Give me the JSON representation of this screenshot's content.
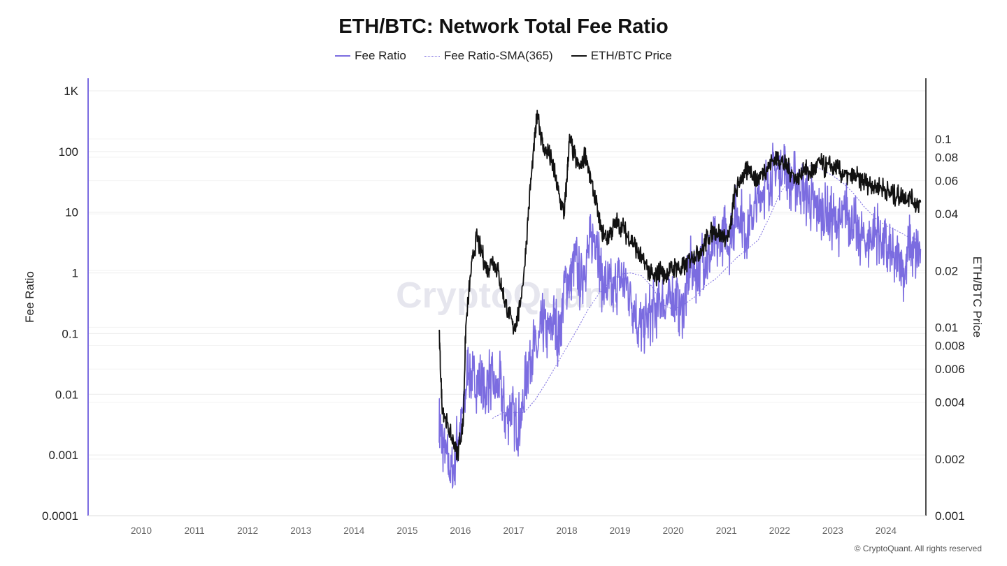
{
  "chart_data": {
    "type": "line",
    "title": "ETH/BTC: Network Total Fee Ratio",
    "legend": {
      "placement": "top-center",
      "entries": [
        {
          "name": "Fee Ratio",
          "color": "#7b6ce0",
          "style": "solid"
        },
        {
          "name": "Fee Ratio-SMA(365)",
          "color": "#7b6ce0",
          "style": "dotted"
        },
        {
          "name": "ETH/BTC Price",
          "color": "#111111",
          "style": "solid"
        }
      ]
    },
    "ylabel": "Fee Ratio",
    "y2label": "ETH/BTC Price",
    "y_scale": "log",
    "y2_scale": "log",
    "ylim": [
      0.0001,
      1000
    ],
    "y2lim": [
      0.001,
      0.18
    ],
    "xlim": [
      2009.0,
      2024.75
    ],
    "x_ticks": [
      "2010",
      "2011",
      "2012",
      "2013",
      "2014",
      "2015",
      "2016",
      "2017",
      "2018",
      "2019",
      "2020",
      "2021",
      "2022",
      "2023",
      "2024"
    ],
    "y_ticks": [
      "1K",
      "100",
      "10",
      "1",
      "0.1",
      "0.01",
      "0.001",
      "0.0001"
    ],
    "y2_ticks": [
      "0.1",
      "0.08",
      "0.06",
      "0.04",
      "0.02",
      "0.01",
      "0.008",
      "0.006",
      "0.004",
      "0.002",
      "0.001"
    ],
    "grid": true,
    "watermark": "CryptoQuant",
    "series": [
      {
        "name": "Fee Ratio",
        "x": [
          2015.6,
          2015.65,
          2015.75,
          2015.85,
          2015.95,
          2016.05,
          2016.15,
          2016.25,
          2016.35,
          2016.45,
          2016.55,
          2016.65,
          2016.75,
          2016.85,
          2016.95,
          2017.05,
          2017.15,
          2017.25,
          2017.35,
          2017.45,
          2017.55,
          2017.65,
          2017.75,
          2017.85,
          2017.95,
          2018.05,
          2018.15,
          2018.25,
          2018.35,
          2018.45,
          2018.55,
          2018.65,
          2018.75,
          2018.85,
          2018.95,
          2019.05,
          2019.15,
          2019.25,
          2019.35,
          2019.45,
          2019.55,
          2019.65,
          2019.75,
          2019.85,
          2019.95,
          2020.05,
          2020.15,
          2020.25,
          2020.35,
          2020.45,
          2020.55,
          2020.65,
          2020.75,
          2020.85,
          2020.95,
          2021.05,
          2021.15,
          2021.25,
          2021.35,
          2021.45,
          2021.55,
          2021.65,
          2021.75,
          2021.85,
          2021.95,
          2022.05,
          2022.15,
          2022.25,
          2022.35,
          2022.45,
          2022.55,
          2022.65,
          2022.75,
          2022.85,
          2022.95,
          2023.05,
          2023.15,
          2023.25,
          2023.35,
          2023.45,
          2023.55,
          2023.65,
          2023.75,
          2023.85,
          2023.95,
          2024.05,
          2024.15,
          2024.25,
          2024.35,
          2024.45,
          2024.55,
          2024.65
        ],
        "values": [
          0.003,
          0.002,
          0.0008,
          0.0005,
          0.002,
          0.005,
          0.03,
          0.015,
          0.02,
          0.008,
          0.02,
          0.012,
          0.015,
          0.004,
          0.006,
          0.003,
          0.004,
          0.025,
          0.06,
          0.05,
          0.15,
          0.1,
          0.2,
          0.08,
          0.6,
          0.8,
          2,
          0.7,
          1.5,
          3,
          5,
          0.8,
          0.6,
          0.5,
          0.7,
          0.8,
          0.6,
          0.3,
          0.12,
          0.15,
          0.2,
          0.25,
          0.35,
          0.3,
          0.35,
          0.4,
          0.25,
          0.5,
          1.5,
          1,
          2,
          1.5,
          2.5,
          3,
          5,
          3,
          8,
          10,
          5,
          7,
          12,
          20,
          30,
          40,
          50,
          60,
          45,
          30,
          35,
          25,
          15,
          12,
          10,
          9,
          8,
          7,
          6,
          10,
          8,
          5,
          4,
          3,
          4,
          5,
          3,
          2,
          1.5,
          2,
          1,
          3,
          2,
          2.5
        ]
      },
      {
        "name": "Fee Ratio-SMA(365)",
        "x": [
          2016.6,
          2016.8,
          2017.0,
          2017.2,
          2017.4,
          2017.6,
          2017.8,
          2018.0,
          2018.2,
          2018.4,
          2018.6,
          2018.8,
          2019.0,
          2019.2,
          2019.4,
          2019.6,
          2019.8,
          2020.0,
          2020.2,
          2020.4,
          2020.6,
          2020.8,
          2021.0,
          2021.2,
          2021.4,
          2021.6,
          2021.8,
          2022.0,
          2022.2,
          2022.4,
          2022.6,
          2022.8,
          2023.0,
          2023.2,
          2023.4,
          2023.6,
          2023.8,
          2024.0,
          2024.2,
          2024.4,
          2024.6
        ],
        "values": [
          0.004,
          0.005,
          0.005,
          0.005,
          0.008,
          0.015,
          0.03,
          0.06,
          0.12,
          0.25,
          0.45,
          0.7,
          0.95,
          1,
          0.9,
          0.6,
          0.3,
          0.25,
          0.3,
          0.4,
          0.6,
          0.8,
          1.2,
          1.8,
          2.5,
          3.5,
          8,
          20,
          35,
          50,
          60,
          50,
          40,
          30,
          20,
          12,
          8,
          6,
          5,
          4,
          3.5
        ]
      },
      {
        "name": "ETH/BTC Price",
        "x": [
          2015.6,
          2015.65,
          2015.75,
          2015.85,
          2015.95,
          2016.05,
          2016.1,
          2016.2,
          2016.3,
          2016.4,
          2016.5,
          2016.6,
          2016.7,
          2016.8,
          2016.9,
          2017.0,
          2017.1,
          2017.2,
          2017.3,
          2017.4,
          2017.45,
          2017.55,
          2017.65,
          2017.75,
          2017.85,
          2017.95,
          2018.0,
          2018.05,
          2018.15,
          2018.25,
          2018.35,
          2018.45,
          2018.55,
          2018.65,
          2018.75,
          2018.85,
          2018.95,
          2019.05,
          2019.15,
          2019.25,
          2019.35,
          2019.45,
          2019.55,
          2019.65,
          2019.75,
          2019.85,
          2019.95,
          2020.05,
          2020.15,
          2020.25,
          2020.35,
          2020.45,
          2020.55,
          2020.65,
          2020.75,
          2020.85,
          2020.95,
          2021.05,
          2021.15,
          2021.25,
          2021.35,
          2021.45,
          2021.55,
          2021.65,
          2021.75,
          2021.85,
          2021.95,
          2022.05,
          2022.15,
          2022.25,
          2022.35,
          2022.45,
          2022.55,
          2022.65,
          2022.75,
          2022.85,
          2022.95,
          2023.05,
          2023.15,
          2023.25,
          2023.35,
          2023.45,
          2023.55,
          2023.65,
          2023.75,
          2023.85,
          2023.95,
          2024.05,
          2024.15,
          2024.25,
          2024.35,
          2024.45,
          2024.55,
          2024.65
        ],
        "values": [
          0.009,
          0.004,
          0.003,
          0.0025,
          0.0022,
          0.003,
          0.01,
          0.02,
          0.03,
          0.025,
          0.02,
          0.023,
          0.02,
          0.015,
          0.012,
          0.01,
          0.012,
          0.02,
          0.05,
          0.1,
          0.14,
          0.09,
          0.085,
          0.07,
          0.05,
          0.04,
          0.06,
          0.1,
          0.08,
          0.07,
          0.085,
          0.06,
          0.045,
          0.032,
          0.03,
          0.033,
          0.036,
          0.034,
          0.03,
          0.028,
          0.025,
          0.022,
          0.02,
          0.018,
          0.02,
          0.019,
          0.02,
          0.021,
          0.02,
          0.022,
          0.024,
          0.025,
          0.026,
          0.03,
          0.033,
          0.032,
          0.03,
          0.03,
          0.05,
          0.06,
          0.065,
          0.07,
          0.06,
          0.065,
          0.07,
          0.075,
          0.08,
          0.075,
          0.07,
          0.065,
          0.06,
          0.07,
          0.065,
          0.07,
          0.075,
          0.07,
          0.072,
          0.07,
          0.066,
          0.064,
          0.062,
          0.063,
          0.06,
          0.058,
          0.057,
          0.056,
          0.055,
          0.052,
          0.05,
          0.05,
          0.048,
          0.05,
          0.045,
          0.046
        ]
      }
    ]
  },
  "copyright": "© CryptoQuant. All rights reserved"
}
